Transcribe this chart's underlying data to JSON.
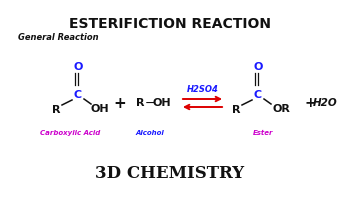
{
  "title": "ESTERIFICTION REACTION",
  "subtitle": "General Reaction",
  "footer": "3D CHEMISTRY",
  "bg_color": "#ffffff",
  "black": "#111111",
  "blue": "#1a1aff",
  "magenta": "#cc00cc",
  "red": "#dd0000",
  "label_carboxylic": "Carboxylic Acid",
  "label_alcohol": "Alcohol",
  "label_ester": "Ester",
  "catalyst": "H2SO4",
  "byproduct": "+ H2O"
}
